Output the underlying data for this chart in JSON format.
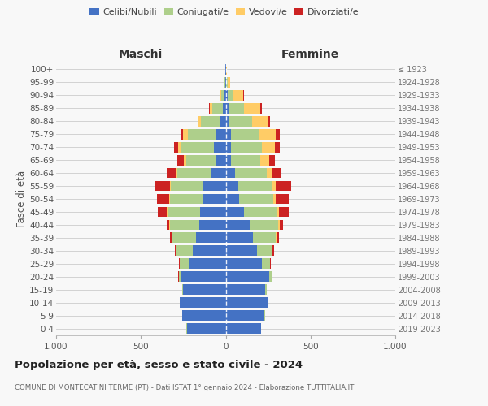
{
  "age_groups": [
    "0-4",
    "5-9",
    "10-14",
    "15-19",
    "20-24",
    "25-29",
    "30-34",
    "35-39",
    "40-44",
    "45-49",
    "50-54",
    "55-59",
    "60-64",
    "65-69",
    "70-74",
    "75-79",
    "80-84",
    "85-89",
    "90-94",
    "95-99",
    "100+"
  ],
  "birth_years": [
    "2019-2023",
    "2014-2018",
    "2009-2013",
    "2004-2008",
    "1999-2003",
    "1994-1998",
    "1989-1993",
    "1984-1988",
    "1979-1983",
    "1974-1978",
    "1969-1973",
    "1964-1968",
    "1959-1963",
    "1954-1958",
    "1949-1953",
    "1944-1948",
    "1939-1943",
    "1934-1938",
    "1929-1933",
    "1924-1928",
    "≤ 1923"
  ],
  "maschi": {
    "celibi": [
      230,
      255,
      270,
      250,
      260,
      220,
      195,
      175,
      155,
      150,
      130,
      130,
      90,
      60,
      70,
      55,
      30,
      18,
      8,
      3,
      2
    ],
    "coniugati": [
      1,
      1,
      2,
      5,
      15,
      50,
      95,
      140,
      175,
      195,
      200,
      195,
      195,
      175,
      195,
      170,
      115,
      60,
      18,
      5,
      2
    ],
    "vedovi": [
      0,
      0,
      0,
      1,
      2,
      2,
      2,
      3,
      5,
      5,
      5,
      5,
      10,
      10,
      15,
      25,
      15,
      15,
      5,
      2,
      0
    ],
    "divorziati": [
      0,
      0,
      0,
      1,
      3,
      5,
      8,
      12,
      15,
      50,
      70,
      90,
      55,
      40,
      25,
      10,
      5,
      3,
      1,
      0,
      0
    ]
  },
  "femmine": {
    "nubili": [
      210,
      230,
      250,
      235,
      255,
      215,
      185,
      160,
      140,
      110,
      80,
      75,
      55,
      30,
      30,
      30,
      20,
      15,
      10,
      3,
      2
    ],
    "coniugate": [
      1,
      1,
      2,
      5,
      15,
      45,
      90,
      135,
      170,
      195,
      200,
      195,
      185,
      175,
      185,
      170,
      135,
      95,
      30,
      8,
      2
    ],
    "vedove": [
      0,
      0,
      0,
      1,
      2,
      2,
      3,
      5,
      8,
      10,
      15,
      25,
      35,
      50,
      75,
      95,
      95,
      95,
      65,
      15,
      2
    ],
    "divorziate": [
      0,
      0,
      0,
      1,
      2,
      3,
      8,
      15,
      20,
      55,
      75,
      90,
      55,
      35,
      30,
      25,
      10,
      8,
      2,
      1,
      0
    ]
  },
  "colors": {
    "celibi": "#4472C4",
    "coniugati": "#AECF8B",
    "vedovi": "#FFCC66",
    "divorziati": "#CC2222"
  },
  "xlim": 1000,
  "title": "Popolazione per età, sesso e stato civile - 2024",
  "subtitle": "COMUNE DI MONTECATINI TERME (PT) - Dati ISTAT 1° gennaio 2024 - Elaborazione TUTTITALIA.IT",
  "ylabel_left": "Fasce di età",
  "xlabel_left": "Maschi",
  "xlabel_right": "Femmine",
  "bg_color": "#f8f8f8",
  "grid_color": "#cccccc"
}
